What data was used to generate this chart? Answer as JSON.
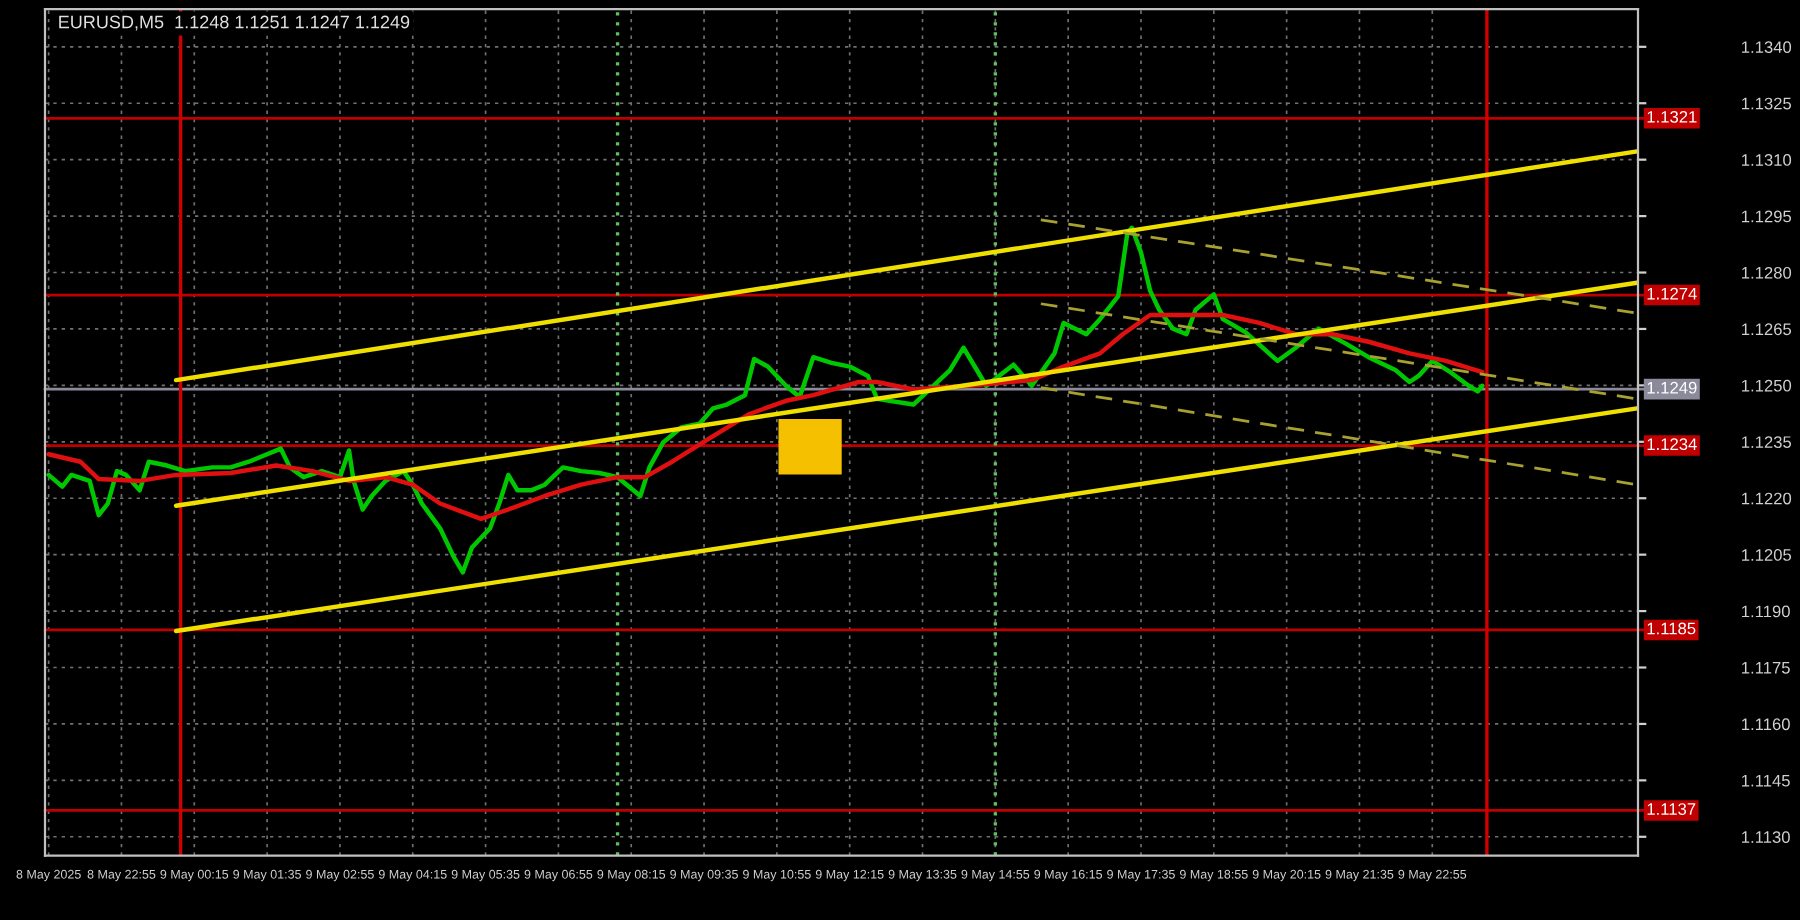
{
  "chart_data": {
    "type": "line",
    "title": "EURUSD,M5  1.1248 1.1251 1.1247 1.1249",
    "xlim": [
      "2025-05-08T21:31",
      "2025-05-10T02:41"
    ],
    "ylim": [
      1.1125,
      1.135
    ],
    "xticks": [
      {
        "value": "2025-05-08T21:35",
        "label": "8 May 2025"
      },
      {
        "value": "2025-05-08T22:55",
        "label": "8 May 22:55"
      },
      {
        "value": "2025-05-09T00:15",
        "label": "9 May 00:15"
      },
      {
        "value": "2025-05-09T01:35",
        "label": "9 May 01:35"
      },
      {
        "value": "2025-05-09T02:55",
        "label": "9 May 02:55"
      },
      {
        "value": "2025-05-09T04:15",
        "label": "9 May 04:15"
      },
      {
        "value": "2025-05-09T05:35",
        "label": "9 May 05:35"
      },
      {
        "value": "2025-05-09T06:55",
        "label": "9 May 06:55"
      },
      {
        "value": "2025-05-09T08:15",
        "label": "9 May 08:15"
      },
      {
        "value": "2025-05-09T09:35",
        "label": "9 May 09:35"
      },
      {
        "value": "2025-05-09T10:55",
        "label": "9 May 10:55"
      },
      {
        "value": "2025-05-09T12:15",
        "label": "9 May 12:15"
      },
      {
        "value": "2025-05-09T13:35",
        "label": "9 May 13:35"
      },
      {
        "value": "2025-05-09T14:55",
        "label": "9 May 14:55"
      },
      {
        "value": "2025-05-09T16:15",
        "label": "9 May 16:15"
      },
      {
        "value": "2025-05-09T17:35",
        "label": "9 May 17:35"
      },
      {
        "value": "2025-05-09T18:55",
        "label": "9 May 18:55"
      },
      {
        "value": "2025-05-09T20:15",
        "label": "9 May 20:15"
      },
      {
        "value": "2025-05-09T21:35",
        "label": "9 May 21:35"
      },
      {
        "value": "2025-05-09T22:55",
        "label": "9 May 22:55"
      }
    ],
    "yticks": [
      {
        "value": 1.113,
        "label": "1.1130"
      },
      {
        "value": 1.1145,
        "label": "1.1145"
      },
      {
        "value": 1.116,
        "label": "1.1160"
      },
      {
        "value": 1.1175,
        "label": "1.1175"
      },
      {
        "value": 1.119,
        "label": "1.1190"
      },
      {
        "value": 1.1205,
        "label": "1.1205"
      },
      {
        "value": 1.122,
        "label": "1.1220"
      },
      {
        "value": 1.1235,
        "label": "1.1235"
      },
      {
        "value": 1.125,
        "label": "1.1250"
      },
      {
        "value": 1.1265,
        "label": "1.1265"
      },
      {
        "value": 1.128,
        "label": "1.1280"
      },
      {
        "value": 1.1295,
        "label": "1.1295"
      },
      {
        "value": 1.131,
        "label": "1.1310"
      },
      {
        "value": 1.1325,
        "label": "1.1325"
      },
      {
        "value": 1.134,
        "label": "1.1340"
      }
    ],
    "grid": true,
    "legend": false,
    "series": [
      {
        "type": "area",
        "color": "#f5c000",
        "x": [
          "2025-05-09T10:58",
          "2025-05-09T10:58",
          "2025-05-09T12:05",
          "2025-05-09T12:05",
          "2025-05-09T10:58"
        ],
        "values": [
          1.12266,
          1.12408,
          1.12408,
          1.12266,
          1.12266
        ]
      },
      {
        "color": "#00c800",
        "line_style": "solid",
        "x": [
          "2025-05-08T21:35",
          "2025-05-08T21:50",
          "2025-05-08T22:00",
          "2025-05-08T22:20",
          "2025-05-08T22:30",
          "2025-05-08T22:40",
          "2025-05-08T22:50",
          "2025-05-08T23:00",
          "2025-05-08T23:15",
          "2025-05-08T23:25",
          "2025-05-08T23:45",
          "2025-05-09T00:05",
          "2025-05-09T00:35",
          "2025-05-09T00:55",
          "2025-05-09T01:15",
          "2025-05-09T01:35",
          "2025-05-09T01:50",
          "2025-05-09T02:00",
          "2025-05-09T02:15",
          "2025-05-09T02:35",
          "2025-05-09T02:55",
          "2025-05-09T03:05",
          "2025-05-09T03:10",
          "2025-05-09T03:20",
          "2025-05-09T03:30",
          "2025-05-09T03:45",
          "2025-05-09T04:05",
          "2025-05-09T04:15",
          "2025-05-09T04:25",
          "2025-05-09T04:45",
          "2025-05-09T05:00",
          "2025-05-09T05:10",
          "2025-05-09T05:20",
          "2025-05-09T05:40",
          "2025-05-09T05:50",
          "2025-05-09T06:00",
          "2025-05-09T06:10",
          "2025-05-09T06:25",
          "2025-05-09T06:40",
          "2025-05-09T07:00",
          "2025-05-09T07:20",
          "2025-05-09T07:40",
          "2025-05-09T08:00",
          "2025-05-09T08:25",
          "2025-05-09T08:35",
          "2025-05-09T08:50",
          "2025-05-09T09:10",
          "2025-05-09T09:30",
          "2025-05-09T09:45",
          "2025-05-09T10:00",
          "2025-05-09T10:20",
          "2025-05-09T10:30",
          "2025-05-09T10:45",
          "2025-05-09T11:05",
          "2025-05-09T11:20",
          "2025-05-09T11:35",
          "2025-05-09T11:55",
          "2025-05-09T12:15",
          "2025-05-09T12:35",
          "2025-05-09T12:45",
          "2025-05-09T13:25",
          "2025-05-09T14:05",
          "2025-05-09T14:20",
          "2025-05-09T14:45",
          "2025-05-09T15:15",
          "2025-05-09T15:35",
          "2025-05-09T16:00",
          "2025-05-09T16:10",
          "2025-05-09T16:35",
          "2025-05-09T16:50",
          "2025-05-09T17:10",
          "2025-05-09T17:20",
          "2025-05-09T17:25",
          "2025-05-09T17:35",
          "2025-05-09T17:45",
          "2025-05-09T17:55",
          "2025-05-09T18:10",
          "2025-05-09T18:25",
          "2025-05-09T18:35",
          "2025-05-09T18:55",
          "2025-05-09T19:05",
          "2025-05-09T19:30",
          "2025-05-09T20:05",
          "2025-05-09T20:25",
          "2025-05-09T20:50",
          "2025-05-09T21:20",
          "2025-05-09T21:45",
          "2025-05-09T22:15",
          "2025-05-09T22:30",
          "2025-05-09T22:40",
          "2025-05-09T22:55",
          "2025-05-09T23:15",
          "2025-05-09T23:35",
          "2025-05-09T23:45",
          "2025-05-09T23:50"
        ],
        "values": [
          1.12262,
          1.12231,
          1.12262,
          1.12246,
          1.12155,
          1.12186,
          1.12272,
          1.12262,
          1.12221,
          1.12297,
          1.12287,
          1.12272,
          1.12282,
          1.12282,
          1.12297,
          1.12317,
          1.12332,
          1.12282,
          1.12256,
          1.12272,
          1.12256,
          1.12327,
          1.12246,
          1.1217,
          1.12206,
          1.12246,
          1.12272,
          1.12236,
          1.12186,
          1.1212,
          1.12044,
          1.12003,
          1.12069,
          1.1212,
          1.12186,
          1.12262,
          1.12221,
          1.12221,
          1.12236,
          1.12282,
          1.12272,
          1.12267,
          1.12256,
          1.12206,
          1.12282,
          1.12348,
          1.12388,
          1.12398,
          1.12439,
          1.12449,
          1.12474,
          1.1257,
          1.1255,
          1.12499,
          1.12469,
          1.12575,
          1.1256,
          1.1255,
          1.12525,
          1.12464,
          1.12449,
          1.1254,
          1.126,
          1.12499,
          1.12555,
          1.12499,
          1.12585,
          1.12666,
          1.12636,
          1.12676,
          1.12737,
          1.12904,
          1.12919,
          1.12853,
          1.12752,
          1.12701,
          1.12651,
          1.12636,
          1.12701,
          1.12742,
          1.12676,
          1.12641,
          1.12565,
          1.126,
          1.12651,
          1.12611,
          1.12575,
          1.1254,
          1.12509,
          1.12525,
          1.12565,
          1.12535,
          1.12499,
          1.12484,
          1.12499
        ]
      },
      {
        "color": "#e01010",
        "line_style": "solid",
        "x": [
          "2025-05-08T21:35",
          "2025-05-08T22:10",
          "2025-05-08T22:30",
          "2025-05-08T23:15",
          "2025-05-08T23:55",
          "2025-05-09T00:55",
          "2025-05-09T01:45",
          "2025-05-09T02:25",
          "2025-05-09T03:05",
          "2025-05-09T03:45",
          "2025-05-09T04:15",
          "2025-05-09T04:45",
          "2025-05-09T05:30",
          "2025-05-09T06:00",
          "2025-05-09T06:40",
          "2025-05-09T07:20",
          "2025-05-09T08:00",
          "2025-05-09T08:30",
          "2025-05-09T09:00",
          "2025-05-09T09:40",
          "2025-05-09T10:25",
          "2025-05-09T11:05",
          "2025-05-09T11:35",
          "2025-05-09T12:25",
          "2025-05-09T12:45",
          "2025-05-09T13:25",
          "2025-05-09T14:25",
          "2025-05-09T15:35",
          "2025-05-09T16:10",
          "2025-05-09T16:50",
          "2025-05-09T17:15",
          "2025-05-09T17:45",
          "2025-05-09T18:25",
          "2025-05-09T19:05",
          "2025-05-09T19:45",
          "2025-05-09T20:25",
          "2025-05-09T21:05",
          "2025-05-09T21:45",
          "2025-05-09T22:30",
          "2025-05-09T23:10",
          "2025-05-09T23:50"
        ],
        "values": [
          1.12317,
          1.12297,
          1.12251,
          1.12246,
          1.12262,
          1.12267,
          1.12287,
          1.12272,
          1.12246,
          1.12256,
          1.12236,
          1.12186,
          1.12145,
          1.1217,
          1.12206,
          1.12236,
          1.12256,
          1.12256,
          1.12297,
          1.12358,
          1.12424,
          1.12459,
          1.12474,
          1.12509,
          1.12509,
          1.12489,
          1.12499,
          1.12514,
          1.1255,
          1.12585,
          1.12636,
          1.12687,
          1.12687,
          1.12687,
          1.12666,
          1.12636,
          1.12636,
          1.12616,
          1.12585,
          1.12565,
          1.12535
        ]
      },
      {
        "color": "#f0e000",
        "line_style": "solid",
        "x": [
          "2025-05-08T23:55",
          "2025-05-10T02:40"
        ],
        "values": [
          1.12514,
          1.13122
        ]
      },
      {
        "color": "#f0e000",
        "line_style": "solid",
        "x": [
          "2025-05-08T23:55",
          "2025-05-10T02:40"
        ],
        "values": [
          1.1218,
          1.12773
        ]
      },
      {
        "color": "#f0e000",
        "line_style": "solid",
        "x": [
          "2025-05-08T23:55",
          "2025-05-10T02:40"
        ],
        "values": [
          1.11847,
          1.12439
        ]
      },
      {
        "color": "#a8a030",
        "line_style": "dashed",
        "x": [
          "2025-05-09T15:45",
          "2025-05-10T02:40"
        ],
        "values": [
          1.1294,
          1.12692
        ]
      },
      {
        "color": "#a8a030",
        "line_style": "dashed",
        "x": [
          "2025-05-09T15:45",
          "2025-05-10T02:40"
        ],
        "values": [
          1.12717,
          1.12464
        ]
      },
      {
        "color": "#a8a030",
        "line_style": "dashed",
        "x": [
          "2025-05-09T15:45",
          "2025-05-10T02:40"
        ],
        "values": [
          1.12494,
          1.12236
        ]
      }
    ],
    "ref_lines": [
      {
        "axis": "y",
        "value": 1.1321,
        "label": "1.1321",
        "color": "#c00000"
      },
      {
        "axis": "y",
        "value": 1.1274,
        "label": "1.1274",
        "color": "#c00000"
      },
      {
        "axis": "y",
        "value": 1.1249,
        "label": "1.1249",
        "color": "#8a8a9a"
      },
      {
        "axis": "y",
        "value": 1.1234,
        "label": "1.1234",
        "color": "#c00000"
      },
      {
        "axis": "y",
        "value": 1.1185,
        "label": "1.1185",
        "color": "#c00000"
      },
      {
        "axis": "y",
        "value": 1.1137,
        "label": "1.1137",
        "color": "#c00000"
      },
      {
        "axis": "x",
        "value": "2025-05-09T00:00",
        "color": "#d00000",
        "line_style": "solid"
      },
      {
        "axis": "x",
        "value": "2025-05-09T23:55",
        "color": "#d00000",
        "line_style": "solid"
      },
      {
        "axis": "x",
        "value": "2025-05-09T08:00",
        "color": "#60c060",
        "line_style": "dotted"
      },
      {
        "axis": "x",
        "value": "2025-05-09T14:55",
        "color": "#60c060",
        "line_style": "dotted"
      }
    ]
  }
}
